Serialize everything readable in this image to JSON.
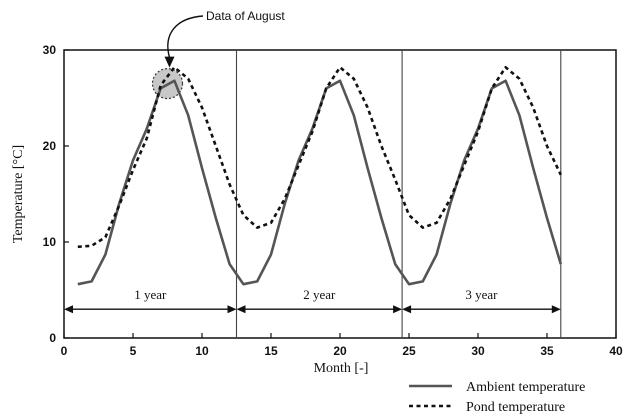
{
  "chart_data": {
    "type": "line",
    "xlabel": "Month [-]",
    "ylabel": "Temperature  [°C]",
    "xlim": [
      0,
      40
    ],
    "ylim": [
      0,
      30
    ],
    "xticks": [
      "0",
      "5",
      "10",
      "15",
      "20",
      "25",
      "30",
      "35",
      "40"
    ],
    "yticks": [
      "0",
      "10",
      "20",
      "30"
    ],
    "grid": false,
    "legend_position": "bottom-right",
    "series": [
      {
        "name": "Ambient temperature",
        "style": "solid",
        "color": "#555555",
        "x": [
          1,
          2,
          3,
          4,
          5,
          6,
          7,
          8,
          9,
          10,
          11,
          12,
          13,
          14,
          15,
          16,
          17,
          18,
          19,
          20,
          21,
          22,
          23,
          24,
          25,
          26,
          27,
          28,
          29,
          30,
          31,
          32,
          33,
          34,
          35,
          36
        ],
        "y": [
          5.6,
          5.9,
          8.7,
          14.0,
          18.5,
          21.8,
          26.0,
          26.8,
          23.2,
          17.7,
          12.5,
          7.7,
          5.6,
          5.9,
          8.7,
          14.0,
          18.5,
          21.8,
          26.0,
          26.8,
          23.2,
          17.7,
          12.5,
          7.7,
          5.6,
          5.9,
          8.7,
          14.0,
          18.5,
          21.8,
          26.0,
          26.8,
          23.2,
          17.7,
          12.5,
          7.7
        ]
      },
      {
        "name": "Pond temperature",
        "style": "dotted",
        "color": "#111111",
        "x": [
          1,
          2,
          3,
          4,
          5,
          6,
          7,
          8,
          9,
          10,
          11,
          12,
          13,
          14,
          15,
          16,
          17,
          18,
          19,
          20,
          21,
          22,
          23,
          24,
          25,
          26,
          27,
          28,
          29,
          30,
          31,
          32,
          33,
          34,
          35,
          36
        ],
        "y": [
          9.5,
          9.6,
          10.5,
          13.8,
          17.5,
          20.8,
          26.3,
          28.2,
          27.0,
          24.0,
          20.0,
          16.0,
          12.8,
          11.5,
          12.0,
          14.5,
          18.0,
          21.5,
          26.0,
          28.2,
          27.0,
          24.0,
          20.0,
          16.5,
          12.8,
          11.5,
          12.0,
          14.5,
          18.0,
          21.5,
          26.0,
          28.2,
          27.0,
          24.0,
          20.0,
          17.0
        ]
      }
    ],
    "dividers_x": [
      12.5,
      24.5,
      36.0
    ],
    "periods": [
      {
        "label": "1 year",
        "x_start": 0,
        "x_end": 12.5
      },
      {
        "label": "2 year",
        "x_start": 12.5,
        "x_end": 24.5
      },
      {
        "label": "3 year",
        "x_start": 24.5,
        "x_end": 36.0
      }
    ],
    "periods_y": 3,
    "annotation": {
      "text": "Data of August",
      "target_x": 7.5,
      "target_y": 26.5
    }
  }
}
